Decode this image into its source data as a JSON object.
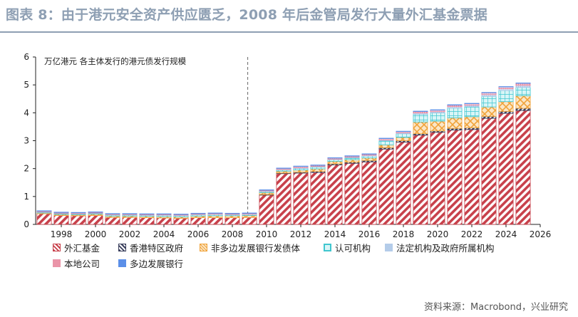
{
  "header": {
    "title": "图表 8：由于港元安全资产供应匮乏，2008 年后金管局发行大量外汇基金票据"
  },
  "footer": {
    "source": "资料来源：Macrobond，兴业研究"
  },
  "chart_data": {
    "type": "bar",
    "stacked": true,
    "title": "万亿港元  各主体发行的港元债发行规模",
    "xlabel": "",
    "ylabel": "万亿港元",
    "x_ticks": [
      "1998",
      "2000",
      "2002",
      "2004",
      "2006",
      "2008",
      "2010",
      "2012",
      "2014",
      "2016",
      "2018",
      "2020",
      "2022",
      "2024",
      "2026"
    ],
    "y_ticks": [
      "0",
      "1",
      "2",
      "3",
      "4",
      "5",
      "6"
    ],
    "xlim": [
      1996.5,
      2026
    ],
    "ylim": [
      0,
      6
    ],
    "grid": false,
    "reference_line_x": 2008.9,
    "legend_position": "bottom",
    "years": [
      1997,
      1998,
      1999,
      2000,
      2001,
      2002,
      2003,
      2004,
      2005,
      2006,
      2007,
      2008,
      2009,
      2010,
      2011,
      2012,
      2013,
      2014,
      2015,
      2016,
      2017,
      2018,
      2019,
      2020,
      2021,
      2022,
      2023,
      2024,
      2025
    ],
    "series": [
      {
        "name": "外汇基金",
        "color": "#c8414b",
        "pattern": "hatch",
        "values": [
          0.38,
          0.32,
          0.31,
          0.32,
          0.25,
          0.25,
          0.24,
          0.23,
          0.22,
          0.24,
          0.24,
          0.24,
          0.25,
          1.05,
          1.82,
          1.84,
          1.86,
          2.13,
          2.19,
          2.24,
          2.7,
          2.95,
          3.2,
          3.3,
          3.38,
          3.4,
          3.8,
          3.98,
          4.08
        ]
      },
      {
        "name": "香港特区政府",
        "color": "#3a3f5c",
        "pattern": "hatch",
        "values": [
          0,
          0,
          0,
          0,
          0,
          0,
          0,
          0,
          0,
          0,
          0,
          0,
          0,
          0.02,
          0.02,
          0.03,
          0.04,
          0.04,
          0.04,
          0.05,
          0.05,
          0.05,
          0.05,
          0.05,
          0.06,
          0.06,
          0.07,
          0.07,
          0.08
        ]
      },
      {
        "name": "非多边发展银行发债体",
        "color": "#f0a33a",
        "pattern": "crosshatch",
        "values": [
          0.03,
          0.04,
          0.04,
          0.05,
          0.05,
          0.05,
          0.05,
          0.05,
          0.05,
          0.06,
          0.07,
          0.07,
          0.07,
          0.07,
          0.07,
          0.08,
          0.09,
          0.09,
          0.09,
          0.09,
          0.1,
          0.12,
          0.42,
          0.35,
          0.38,
          0.4,
          0.34,
          0.35,
          0.45
        ]
      },
      {
        "name": "认可机构",
        "color": "#3fc6cf",
        "pattern": "grid",
        "values": [
          0.03,
          0.03,
          0.03,
          0.03,
          0.04,
          0.04,
          0.04,
          0.05,
          0.05,
          0.05,
          0.05,
          0.04,
          0.04,
          0.04,
          0.04,
          0.06,
          0.07,
          0.06,
          0.07,
          0.07,
          0.15,
          0.13,
          0.28,
          0.3,
          0.35,
          0.36,
          0.38,
          0.4,
          0.3
        ]
      },
      {
        "name": "法定机构及政府所属机构",
        "color": "#a8c4e6",
        "pattern": "dots",
        "values": [
          0.01,
          0.01,
          0.01,
          0.01,
          0.01,
          0.01,
          0.01,
          0.01,
          0.01,
          0.01,
          0.01,
          0.01,
          0.01,
          0.02,
          0.02,
          0.02,
          0.02,
          0.02,
          0.02,
          0.03,
          0.03,
          0.03,
          0.04,
          0.04,
          0.05,
          0.05,
          0.06,
          0.06,
          0.07
        ]
      },
      {
        "name": "本地公司",
        "color": "#e7829a",
        "pattern": "dots",
        "values": [
          0.03,
          0.03,
          0.03,
          0.03,
          0.03,
          0.03,
          0.03,
          0.03,
          0.03,
          0.03,
          0.03,
          0.03,
          0.03,
          0.03,
          0.04,
          0.05,
          0.04,
          0.04,
          0.04,
          0.04,
          0.05,
          0.05,
          0.06,
          0.06,
          0.06,
          0.06,
          0.07,
          0.07,
          0.08
        ]
      },
      {
        "name": "多边发展银行",
        "color": "#5b8fe8",
        "pattern": "solid",
        "values": [
          0.01,
          0.01,
          0.01,
          0.01,
          0.01,
          0.01,
          0.01,
          0.01,
          0.01,
          0.01,
          0.01,
          0.01,
          0.01,
          0.01,
          0.01,
          0.01,
          0.01,
          0.01,
          0.01,
          0.01,
          0.01,
          0.01,
          0.01,
          0.01,
          0.01,
          0.01,
          0.01,
          0.01,
          0.01
        ]
      }
    ]
  }
}
